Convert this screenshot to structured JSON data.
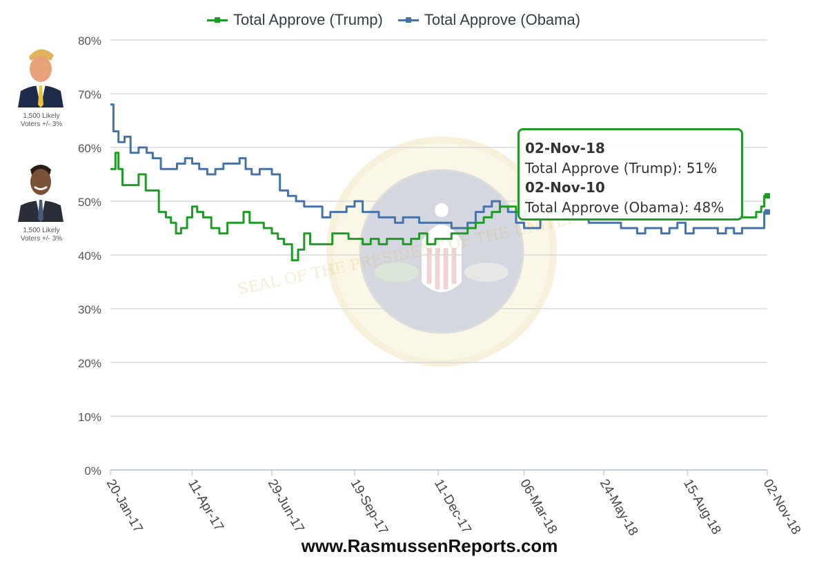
{
  "legend": [
    {
      "label": "Total Approve (Trump)",
      "color": "#1d9b24"
    },
    {
      "label": "Total Approve (Obama)",
      "color": "#4572a7"
    }
  ],
  "portraits": [
    {
      "icon": "trump-photo-icon",
      "caption": "1,500 Likely Voters +/- 3%"
    },
    {
      "icon": "obama-photo-icon",
      "caption": "1,500 Likely Voters +/- 3%"
    }
  ],
  "watermark": {
    "text": "SEAL OF THE PRESIDENT OF THE UNITED STATES"
  },
  "tooltip": {
    "date1": "02-Nov-18",
    "line1": "Total Approve (Trump): 51%",
    "date2": "02-Nov-10",
    "line2": "Total Approve (Obama): 48%"
  },
  "footer": "www.RasmussenReports.com",
  "chart_data": {
    "type": "line",
    "yticks": [
      "0%",
      "10%",
      "20%",
      "30%",
      "40%",
      "50%",
      "60%",
      "70%",
      "80%"
    ],
    "ylim": [
      0,
      80
    ],
    "xlim": [
      0,
      651
    ],
    "xticks": [
      {
        "label": "20-Jan-17",
        "day": 0
      },
      {
        "label": "11-Apr-17",
        "day": 81
      },
      {
        "label": "29-Jun-17",
        "day": 160
      },
      {
        "label": "19-Sep-17",
        "day": 242
      },
      {
        "label": "11-Dec-17",
        "day": 325
      },
      {
        "label": "06-Mar-18",
        "day": 410
      },
      {
        "label": "24-May-18",
        "day": 489
      },
      {
        "label": "15-Aug-18",
        "day": 572
      },
      {
        "label": "02-Nov-18",
        "day": 651
      }
    ],
    "grid": true,
    "legend_position": "top",
    "series": [
      {
        "name": "Total Approve (Trump)",
        "color": "#1d9b24",
        "points": [
          [
            0,
            56
          ],
          [
            5,
            59
          ],
          [
            8,
            56
          ],
          [
            12,
            53
          ],
          [
            20,
            53
          ],
          [
            28,
            55
          ],
          [
            35,
            52
          ],
          [
            40,
            52
          ],
          [
            48,
            48
          ],
          [
            55,
            47
          ],
          [
            60,
            46
          ],
          [
            65,
            44
          ],
          [
            70,
            45
          ],
          [
            76,
            47
          ],
          [
            81,
            49
          ],
          [
            86,
            48
          ],
          [
            92,
            47
          ],
          [
            100,
            45
          ],
          [
            108,
            44
          ],
          [
            116,
            46
          ],
          [
            124,
            46
          ],
          [
            132,
            48
          ],
          [
            138,
            46
          ],
          [
            145,
            46
          ],
          [
            152,
            45
          ],
          [
            160,
            44
          ],
          [
            166,
            43
          ],
          [
            172,
            42
          ],
          [
            180,
            39
          ],
          [
            186,
            41
          ],
          [
            192,
            44
          ],
          [
            198,
            42
          ],
          [
            205,
            42
          ],
          [
            212,
            42
          ],
          [
            220,
            44
          ],
          [
            228,
            44
          ],
          [
            236,
            43
          ],
          [
            242,
            43
          ],
          [
            250,
            42
          ],
          [
            258,
            43
          ],
          [
            266,
            42
          ],
          [
            274,
            43
          ],
          [
            282,
            43
          ],
          [
            290,
            42
          ],
          [
            298,
            43
          ],
          [
            306,
            44
          ],
          [
            314,
            42
          ],
          [
            322,
            43
          ],
          [
            330,
            43
          ],
          [
            338,
            44
          ],
          [
            346,
            44
          ],
          [
            354,
            45
          ],
          [
            362,
            46
          ],
          [
            370,
            47
          ],
          [
            378,
            48
          ],
          [
            386,
            49
          ],
          [
            394,
            49
          ],
          [
            402,
            48
          ],
          [
            410,
            47
          ],
          [
            420,
            47
          ],
          [
            430,
            48
          ],
          [
            440,
            48
          ],
          [
            450,
            47
          ],
          [
            460,
            47
          ],
          [
            470,
            47
          ],
          [
            480,
            47
          ],
          [
            490,
            47
          ],
          [
            500,
            47
          ],
          [
            510,
            47
          ],
          [
            520,
            47
          ],
          [
            530,
            47
          ],
          [
            540,
            47
          ],
          [
            550,
            47
          ],
          [
            560,
            47
          ],
          [
            570,
            47
          ],
          [
            580,
            47
          ],
          [
            590,
            47
          ],
          [
            600,
            47
          ],
          [
            610,
            47
          ],
          [
            620,
            47
          ],
          [
            630,
            47
          ],
          [
            640,
            48
          ],
          [
            645,
            49
          ],
          [
            648,
            51
          ],
          [
            651,
            51
          ]
        ]
      },
      {
        "name": "Total Approve (Obama)",
        "color": "#4572a7",
        "points": [
          [
            0,
            68
          ],
          [
            3,
            63
          ],
          [
            8,
            61
          ],
          [
            14,
            62
          ],
          [
            20,
            59
          ],
          [
            28,
            60
          ],
          [
            36,
            59
          ],
          [
            42,
            58
          ],
          [
            50,
            56
          ],
          [
            58,
            56
          ],
          [
            66,
            57
          ],
          [
            74,
            58
          ],
          [
            81,
            57
          ],
          [
            88,
            56
          ],
          [
            96,
            55
          ],
          [
            104,
            56
          ],
          [
            112,
            57
          ],
          [
            120,
            57
          ],
          [
            128,
            58
          ],
          [
            134,
            56
          ],
          [
            140,
            55
          ],
          [
            148,
            56
          ],
          [
            154,
            56
          ],
          [
            160,
            55
          ],
          [
            168,
            52
          ],
          [
            176,
            51
          ],
          [
            184,
            50
          ],
          [
            192,
            49
          ],
          [
            200,
            49
          ],
          [
            210,
            47
          ],
          [
            218,
            48
          ],
          [
            226,
            48
          ],
          [
            234,
            49
          ],
          [
            242,
            50
          ],
          [
            250,
            48
          ],
          [
            258,
            48
          ],
          [
            266,
            47
          ],
          [
            274,
            47
          ],
          [
            282,
            46
          ],
          [
            290,
            47
          ],
          [
            298,
            47
          ],
          [
            306,
            46
          ],
          [
            314,
            46
          ],
          [
            322,
            46
          ],
          [
            330,
            46
          ],
          [
            338,
            45
          ],
          [
            346,
            45
          ],
          [
            354,
            46
          ],
          [
            362,
            48
          ],
          [
            370,
            49
          ],
          [
            378,
            50
          ],
          [
            386,
            49
          ],
          [
            394,
            48
          ],
          [
            402,
            46
          ],
          [
            410,
            45
          ],
          [
            418,
            45
          ],
          [
            426,
            47
          ],
          [
            434,
            48
          ],
          [
            442,
            48
          ],
          [
            450,
            49
          ],
          [
            458,
            47
          ],
          [
            466,
            47
          ],
          [
            474,
            46
          ],
          [
            482,
            46
          ],
          [
            490,
            46
          ],
          [
            498,
            46
          ],
          [
            506,
            45
          ],
          [
            514,
            45
          ],
          [
            522,
            44
          ],
          [
            530,
            45
          ],
          [
            538,
            45
          ],
          [
            546,
            44
          ],
          [
            554,
            45
          ],
          [
            562,
            46
          ],
          [
            570,
            44
          ],
          [
            578,
            45
          ],
          [
            586,
            45
          ],
          [
            594,
            45
          ],
          [
            602,
            44
          ],
          [
            610,
            45
          ],
          [
            618,
            44
          ],
          [
            626,
            45
          ],
          [
            634,
            45
          ],
          [
            642,
            45
          ],
          [
            648,
            48
          ],
          [
            651,
            48
          ]
        ]
      }
    ]
  }
}
